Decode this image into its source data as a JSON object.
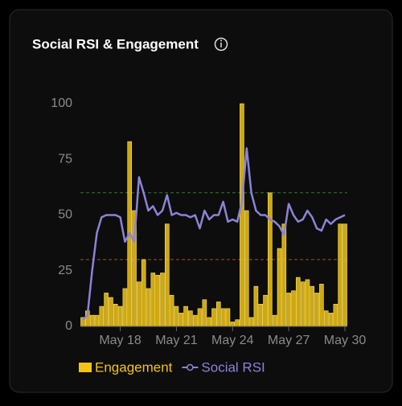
{
  "chart_data": {
    "type": "bar-line",
    "title": "Social RSI & Engagement",
    "categories": [
      null,
      null,
      null,
      null,
      null,
      null,
      null,
      null,
      "May 18",
      null,
      null,
      null,
      null,
      null,
      null,
      null,
      null,
      null,
      null,
      null,
      "May 21",
      null,
      null,
      null,
      null,
      null,
      null,
      null,
      null,
      null,
      null,
      null,
      "May 24",
      null,
      null,
      null,
      null,
      null,
      null,
      null,
      null,
      null,
      null,
      null,
      "May 27",
      null,
      null,
      null,
      null,
      null,
      null,
      null,
      null,
      null,
      null,
      null,
      "May 30"
    ],
    "series": [
      {
        "name": "Engagement",
        "kind": "bar",
        "color": "#f2c414",
        "values": [
          4,
          7,
          5,
          5,
          9,
          15,
          13,
          10,
          9,
          17,
          83,
          52,
          20,
          30,
          17,
          24,
          23,
          24,
          46,
          14,
          9,
          6,
          9,
          7,
          5,
          8,
          12,
          4,
          8,
          11,
          8,
          8,
          2,
          3,
          100,
          52,
          4,
          18,
          10,
          14,
          60,
          5,
          35,
          46,
          15,
          16,
          22,
          20,
          21,
          18,
          15,
          19,
          7,
          6,
          10,
          46,
          46
        ]
      },
      {
        "name": "Social RSI",
        "kind": "line",
        "color": "#8b84d7",
        "values": [
          3,
          5,
          25,
          42,
          49,
          50,
          50,
          50,
          49,
          38,
          42,
          38,
          67,
          60,
          52,
          54,
          50,
          52,
          59,
          50,
          51,
          50,
          50,
          49,
          50,
          44,
          52,
          48,
          50,
          50,
          56,
          47,
          48,
          47,
          56,
          80,
          60,
          52,
          50,
          50,
          48,
          47,
          45,
          41,
          55,
          50,
          47,
          48,
          52,
          49,
          44,
          43,
          48,
          46,
          48,
          49,
          50
        ]
      }
    ],
    "reference_lines": [
      {
        "value": 60,
        "color": "#2f7a2f"
      },
      {
        "value": 30,
        "color": "#a0521c"
      }
    ],
    "ylim": [
      0,
      100
    ],
    "yticks": [
      0,
      25,
      50,
      75,
      100
    ]
  }
}
